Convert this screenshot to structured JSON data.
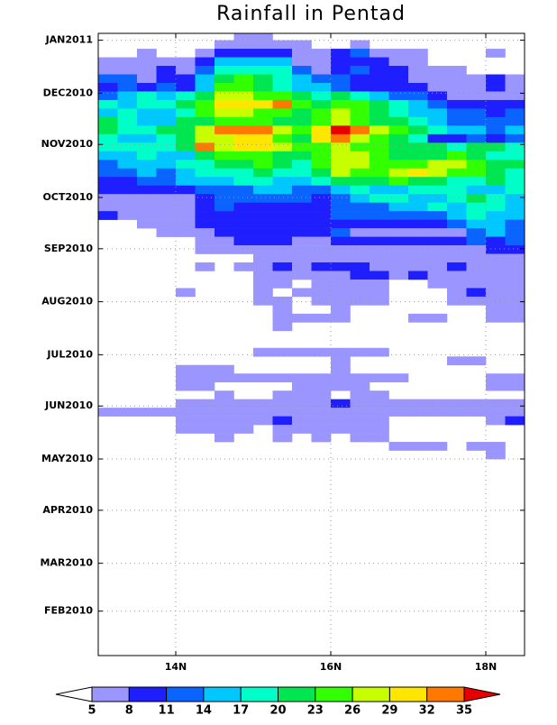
{
  "chart_data": {
    "type": "heatmap",
    "title": "Rainfall in Pentad",
    "x": [
      13.125,
      13.375,
      13.625,
      13.875,
      14.125,
      14.375,
      14.625,
      14.875,
      15.125,
      15.375,
      15.625,
      15.875,
      16.125,
      16.375,
      16.625,
      16.875,
      17.125,
      17.375,
      17.625,
      17.875,
      18.125,
      18.375
    ],
    "y": [
      367.5,
      362.5,
      357.5,
      352.5,
      347.5,
      342.5,
      337.5,
      332.5,
      327.5,
      322.5,
      317.5,
      312.5,
      307.5,
      302.5,
      297.5,
      292.5,
      287.5,
      282.5,
      277.5,
      272.5,
      267.5,
      262.5,
      257.5,
      252.5,
      247.5,
      242.5,
      237.5,
      232.5,
      227.5,
      222.5,
      217.5,
      212.5,
      207.5,
      202.5,
      197.5,
      192.5,
      187.5,
      182.5,
      177.5,
      172.5,
      167.5,
      162.5,
      157.5,
      152.5,
      147.5,
      142.5,
      137.5,
      132.5,
      127.5,
      122.5
    ],
    "z": [
      [
        null,
        null,
        null,
        null,
        null,
        null,
        null,
        6.5,
        6.5,
        null,
        null,
        null,
        null,
        null,
        null,
        null,
        null,
        null,
        null,
        null,
        null,
        null
      ],
      [
        null,
        null,
        null,
        null,
        null,
        null,
        6.5,
        6.5,
        6.5,
        6.5,
        6.5,
        null,
        null,
        6.5,
        null,
        null,
        null,
        null,
        null,
        null,
        null,
        null
      ],
      [
        null,
        null,
        6.5,
        null,
        null,
        6.5,
        9.5,
        9.5,
        9.5,
        9.5,
        6.5,
        6.5,
        9.5,
        12.5,
        6.5,
        6.5,
        6.5,
        null,
        null,
        null,
        6.5,
        null
      ],
      [
        6.5,
        6.5,
        6.5,
        6.5,
        6.5,
        9.5,
        15.5,
        15.5,
        15.5,
        15.5,
        6.5,
        6.5,
        9.5,
        9.5,
        9.5,
        6.5,
        6.5,
        null,
        null,
        null,
        null,
        null
      ],
      [
        6.5,
        6.5,
        6.5,
        9.5,
        6.5,
        12.5,
        18.5,
        18.5,
        18.5,
        18.5,
        12.5,
        6.5,
        9.5,
        12.5,
        9.5,
        9.5,
        6.5,
        6.5,
        6.5,
        null,
        null,
        null
      ],
      [
        12.5,
        12.5,
        6.5,
        9.5,
        9.5,
        15.5,
        21.5,
        24.5,
        21.5,
        18.5,
        15.5,
        12.5,
        12.5,
        9.5,
        9.5,
        9.5,
        6.5,
        6.5,
        6.5,
        6.5,
        9.5,
        6.5
      ],
      [
        9.5,
        12.5,
        9.5,
        12.5,
        9.5,
        15.5,
        24.5,
        24.5,
        21.5,
        18.5,
        15.5,
        15.5,
        12.5,
        9.5,
        9.5,
        9.5,
        9.5,
        6.5,
        6.5,
        6.5,
        9.5,
        6.5
      ],
      [
        12.5,
        15.5,
        18.5,
        15.5,
        18.5,
        21.5,
        27.5,
        27.5,
        24.5,
        24.5,
        21.5,
        18.5,
        21.5,
        18.5,
        15.5,
        12.5,
        12.5,
        9.5,
        6.5,
        6.5,
        6.5,
        6.5
      ],
      [
        18.5,
        15.5,
        18.5,
        18.5,
        21.5,
        24.5,
        30.5,
        30.5,
        30.5,
        33.5,
        24.5,
        21.5,
        24.5,
        24.5,
        21.5,
        18.5,
        15.5,
        12.5,
        9.5,
        9.5,
        9.5,
        9.5
      ],
      [
        15.5,
        18.5,
        15.5,
        15.5,
        18.5,
        24.5,
        27.5,
        27.5,
        24.5,
        24.5,
        21.5,
        24.5,
        27.5,
        24.5,
        21.5,
        18.5,
        15.5,
        15.5,
        12.5,
        12.5,
        9.5,
        12.5
      ],
      [
        21.5,
        18.5,
        15.5,
        15.5,
        21.5,
        21.5,
        24.5,
        24.5,
        24.5,
        21.5,
        21.5,
        24.5,
        27.5,
        24.5,
        21.5,
        21.5,
        18.5,
        15.5,
        12.5,
        12.5,
        12.5,
        12.5
      ],
      [
        21.5,
        18.5,
        18.5,
        21.5,
        21.5,
        27.5,
        33.5,
        33.5,
        33.5,
        27.5,
        24.5,
        30.5,
        36,
        33.5,
        27.5,
        24.5,
        21.5,
        18.5,
        15.5,
        15.5,
        12.5,
        15.5
      ],
      [
        18.5,
        15.5,
        15.5,
        18.5,
        21.5,
        27.5,
        27.5,
        30.5,
        30.5,
        24.5,
        21.5,
        30.5,
        33.5,
        27.5,
        24.5,
        21.5,
        18.5,
        9.5,
        9.5,
        12.5,
        9.5,
        12.5
      ],
      [
        18.5,
        18.5,
        18.5,
        18.5,
        21.5,
        33.5,
        27.5,
        30.5,
        30.5,
        27.5,
        24.5,
        24.5,
        27.5,
        24.5,
        24.5,
        21.5,
        21.5,
        21.5,
        18.5,
        21.5,
        21.5,
        18.5
      ],
      [
        15.5,
        15.5,
        18.5,
        15.5,
        15.5,
        21.5,
        24.5,
        24.5,
        24.5,
        21.5,
        21.5,
        24.5,
        27.5,
        27.5,
        24.5,
        21.5,
        21.5,
        21.5,
        24.5,
        21.5,
        18.5,
        18.5
      ],
      [
        12.5,
        15.5,
        15.5,
        15.5,
        18.5,
        18.5,
        21.5,
        21.5,
        24.5,
        21.5,
        18.5,
        24.5,
        27.5,
        27.5,
        24.5,
        24.5,
        24.5,
        27.5,
        27.5,
        24.5,
        21.5,
        21.5
      ],
      [
        12.5,
        12.5,
        15.5,
        12.5,
        15.5,
        18.5,
        18.5,
        18.5,
        21.5,
        18.5,
        18.5,
        21.5,
        27.5,
        24.5,
        24.5,
        27.5,
        30.5,
        27.5,
        24.5,
        24.5,
        21.5,
        18.5
      ],
      [
        9.5,
        9.5,
        12.5,
        12.5,
        15.5,
        15.5,
        15.5,
        18.5,
        18.5,
        15.5,
        15.5,
        18.5,
        21.5,
        21.5,
        21.5,
        24.5,
        21.5,
        21.5,
        18.5,
        18.5,
        21.5,
        18.5
      ],
      [
        9.5,
        9.5,
        9.5,
        9.5,
        9.5,
        12.5,
        12.5,
        12.5,
        15.5,
        15.5,
        12.5,
        12.5,
        15.5,
        18.5,
        15.5,
        15.5,
        18.5,
        18.5,
        18.5,
        15.5,
        15.5,
        18.5
      ],
      [
        6.5,
        6.5,
        6.5,
        6.5,
        6.5,
        9.5,
        12.5,
        12.5,
        12.5,
        12.5,
        12.5,
        9.5,
        12.5,
        15.5,
        18.5,
        18.5,
        15.5,
        15.5,
        18.5,
        21.5,
        18.5,
        15.5
      ],
      [
        6.5,
        6.5,
        6.5,
        6.5,
        6.5,
        9.5,
        12.5,
        9.5,
        9.5,
        9.5,
        9.5,
        9.5,
        12.5,
        12.5,
        12.5,
        15.5,
        15.5,
        18.5,
        15.5,
        18.5,
        18.5,
        15.5
      ],
      [
        9.5,
        6.5,
        6.5,
        6.5,
        6.5,
        9.5,
        9.5,
        9.5,
        9.5,
        9.5,
        9.5,
        9.5,
        12.5,
        12.5,
        12.5,
        12.5,
        12.5,
        12.5,
        15.5,
        18.5,
        15.5,
        15.5
      ],
      [
        null,
        null,
        6.5,
        6.5,
        6.5,
        9.5,
        9.5,
        9.5,
        9.5,
        9.5,
        9.5,
        9.5,
        9.5,
        9.5,
        9.5,
        9.5,
        9.5,
        9.5,
        12.5,
        15.5,
        15.5,
        12.5
      ],
      [
        null,
        null,
        null,
        6.5,
        6.5,
        6.5,
        9.5,
        9.5,
        9.5,
        9.5,
        9.5,
        9.5,
        12.5,
        6.5,
        6.5,
        6.5,
        6.5,
        6.5,
        6.5,
        12.5,
        15.5,
        12.5
      ],
      [
        null,
        null,
        null,
        null,
        null,
        6.5,
        6.5,
        9.5,
        9.5,
        9.5,
        6.5,
        6.5,
        9.5,
        9.5,
        9.5,
        9.5,
        9.5,
        9.5,
        9.5,
        12.5,
        9.5,
        12.5
      ],
      [
        null,
        null,
        null,
        null,
        null,
        6.5,
        6.5,
        6.5,
        6.5,
        6.5,
        6.5,
        6.5,
        6.5,
        6.5,
        6.5,
        6.5,
        6.5,
        6.5,
        6.5,
        6.5,
        9.5,
        9.5
      ],
      [
        null,
        null,
        null,
        null,
        null,
        null,
        null,
        null,
        6.5,
        6.5,
        6.5,
        6.5,
        6.5,
        6.5,
        6.5,
        6.5,
        6.5,
        6.5,
        6.5,
        6.5,
        6.5,
        6.5
      ],
      [
        null,
        null,
        null,
        null,
        null,
        6.5,
        null,
        6.5,
        6.5,
        9.5,
        6.5,
        9.5,
        9.5,
        9.5,
        6.5,
        6.5,
        6.5,
        6.5,
        9.5,
        6.5,
        6.5,
        6.5
      ],
      [
        null,
        null,
        null,
        null,
        null,
        null,
        null,
        null,
        6.5,
        6.5,
        6.5,
        6.5,
        6.5,
        9.5,
        9.5,
        6.5,
        9.5,
        6.5,
        6.5,
        6.5,
        6.5,
        6.5
      ],
      [
        null,
        null,
        null,
        null,
        null,
        null,
        null,
        null,
        6.5,
        6.5,
        null,
        6.5,
        6.5,
        6.5,
        6.5,
        null,
        null,
        6.5,
        6.5,
        6.5,
        6.5,
        6.5
      ],
      [
        null,
        null,
        null,
        null,
        6.5,
        null,
        null,
        null,
        6.5,
        null,
        6.5,
        6.5,
        6.5,
        6.5,
        6.5,
        null,
        null,
        null,
        6.5,
        9.5,
        6.5,
        6.5
      ],
      [
        null,
        null,
        null,
        null,
        null,
        null,
        null,
        null,
        6.5,
        6.5,
        null,
        6.5,
        6.5,
        6.5,
        6.5,
        null,
        null,
        null,
        6.5,
        6.5,
        6.5,
        6.5
      ],
      [
        null,
        null,
        null,
        null,
        null,
        null,
        null,
        null,
        null,
        6.5,
        null,
        null,
        6.5,
        null,
        null,
        null,
        null,
        null,
        null,
        null,
        6.5,
        6.5
      ],
      [
        null,
        null,
        null,
        null,
        null,
        null,
        null,
        null,
        null,
        6.5,
        6.5,
        6.5,
        6.5,
        null,
        null,
        null,
        6.5,
        6.5,
        null,
        null,
        6.5,
        6.5
      ],
      [
        null,
        null,
        null,
        null,
        null,
        null,
        null,
        null,
        null,
        6.5,
        null,
        null,
        null,
        null,
        null,
        null,
        null,
        null,
        null,
        null,
        null,
        null
      ],
      [
        null,
        null,
        null,
        null,
        null,
        null,
        null,
        null,
        null,
        null,
        null,
        null,
        null,
        null,
        null,
        null,
        null,
        null,
        null,
        null,
        null,
        null
      ],
      [
        null,
        null,
        null,
        null,
        null,
        null,
        null,
        null,
        null,
        null,
        null,
        null,
        null,
        null,
        null,
        null,
        null,
        null,
        null,
        null,
        null,
        null
      ],
      [
        null,
        null,
        null,
        null,
        null,
        null,
        null,
        null,
        6.5,
        6.5,
        6.5,
        6.5,
        6.5,
        6.5,
        6.5,
        null,
        null,
        null,
        null,
        null,
        null,
        null
      ],
      [
        null,
        null,
        null,
        null,
        null,
        null,
        null,
        null,
        null,
        null,
        null,
        null,
        6.5,
        null,
        null,
        null,
        null,
        null,
        6.5,
        6.5,
        null,
        null
      ],
      [
        null,
        null,
        null,
        null,
        6.5,
        6.5,
        6.5,
        null,
        null,
        null,
        null,
        null,
        6.5,
        null,
        null,
        null,
        null,
        null,
        null,
        null,
        null,
        null
      ],
      [
        null,
        null,
        null,
        null,
        6.5,
        6.5,
        6.5,
        6.5,
        6.5,
        6.5,
        6.5,
        6.5,
        6.5,
        6.5,
        6.5,
        6.5,
        null,
        null,
        null,
        null,
        6.5,
        6.5
      ],
      [
        null,
        null,
        null,
        null,
        6.5,
        6.5,
        null,
        null,
        null,
        null,
        6.5,
        6.5,
        6.5,
        6.5,
        null,
        null,
        null,
        null,
        null,
        null,
        6.5,
        6.5
      ],
      [
        null,
        null,
        null,
        null,
        null,
        null,
        6.5,
        null,
        null,
        6.5,
        6.5,
        6.5,
        null,
        6.5,
        6.5,
        null,
        null,
        null,
        null,
        null,
        null,
        null
      ],
      [
        null,
        null,
        null,
        null,
        6.5,
        6.5,
        6.5,
        6.5,
        6.5,
        6.5,
        6.5,
        6.5,
        9.5,
        6.5,
        6.5,
        6.5,
        6.5,
        6.5,
        6.5,
        6.5,
        6.5,
        6.5
      ],
      [
        6.5,
        6.5,
        6.5,
        6.5,
        6.5,
        6.5,
        6.5,
        6.5,
        6.5,
        6.5,
        6.5,
        6.5,
        6.5,
        6.5,
        6.5,
        6.5,
        6.5,
        6.5,
        6.5,
        6.5,
        6.5,
        6.5
      ],
      [
        null,
        null,
        null,
        null,
        6.5,
        6.5,
        6.5,
        6.5,
        6.5,
        9.5,
        6.5,
        6.5,
        6.5,
        6.5,
        6.5,
        null,
        null,
        null,
        null,
        null,
        6.5,
        9.5
      ],
      [
        null,
        null,
        null,
        null,
        6.5,
        6.5,
        6.5,
        6.5,
        null,
        6.5,
        6.5,
        6.5,
        6.5,
        6.5,
        6.5,
        null,
        null,
        null,
        null,
        null,
        null,
        null
      ],
      [
        null,
        null,
        null,
        null,
        null,
        null,
        6.5,
        null,
        null,
        6.5,
        null,
        6.5,
        null,
        6.5,
        6.5,
        null,
        null,
        null,
        null,
        null,
        null,
        null
      ],
      [
        null,
        null,
        null,
        null,
        null,
        null,
        null,
        null,
        null,
        null,
        null,
        null,
        null,
        null,
        null,
        6.5,
        6.5,
        6.5,
        null,
        6.5,
        6.5,
        null
      ],
      [
        null,
        null,
        null,
        null,
        null,
        null,
        null,
        null,
        null,
        null,
        null,
        null,
        null,
        null,
        null,
        null,
        null,
        null,
        null,
        null,
        6.5,
        null
      ]
    ],
    "xlim": [
      13,
      18.5
    ],
    "ylim": [
      5,
      369
    ],
    "xticks": [
      {
        "value": 14,
        "label": "14N"
      },
      {
        "value": 16,
        "label": "16N"
      },
      {
        "value": 18,
        "label": "18N"
      }
    ],
    "yticks": [
      {
        "value": 31,
        "label": "FEB2010"
      },
      {
        "value": 59,
        "label": "MAR2010"
      },
      {
        "value": 90,
        "label": "APR2010"
      },
      {
        "value": 120,
        "label": "MAY2010"
      },
      {
        "value": 151,
        "label": "JUN2010"
      },
      {
        "value": 181,
        "label": "JUL2010"
      },
      {
        "value": 212,
        "label": "AUG2010"
      },
      {
        "value": 243,
        "label": "SEP2010"
      },
      {
        "value": 273,
        "label": "OCT2010"
      },
      {
        "value": 304,
        "label": "NOV2010"
      },
      {
        "value": 334,
        "label": "DEC2010"
      },
      {
        "value": 365,
        "label": "JAN2011"
      }
    ],
    "grid": true,
    "levels": [
      5,
      8,
      11,
      14,
      17,
      20,
      23,
      26,
      29,
      32,
      35
    ],
    "colors": [
      "#9b96ff",
      "#1e1eff",
      "#0a64ff",
      "#00c8ff",
      "#00ffc8",
      "#00e650",
      "#32ff00",
      "#c8ff00",
      "#ffe600",
      "#ff7800",
      "#e60000"
    ],
    "under_color": "#ffffff"
  }
}
